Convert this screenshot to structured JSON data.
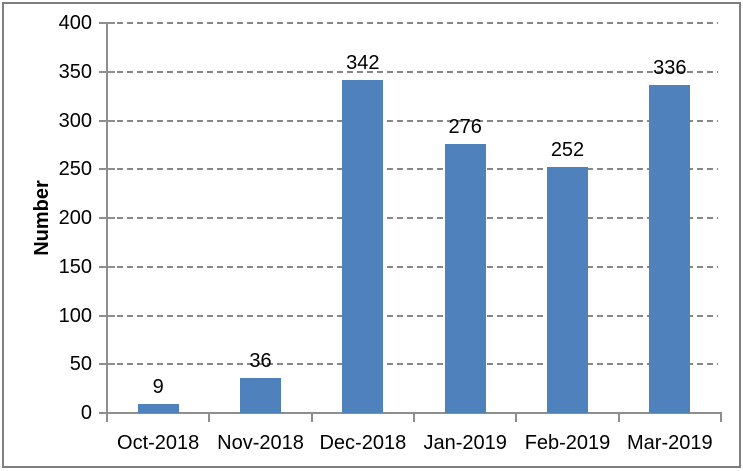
{
  "chart_data": {
    "type": "bar",
    "categories": [
      "Oct-2018",
      "Nov-2018",
      "Dec-2018",
      "Jan-2019",
      "Feb-2019",
      "Mar-2019"
    ],
    "values": [
      9,
      36,
      342,
      276,
      252,
      336
    ],
    "data_labels": [
      "9",
      "36",
      "342",
      "276",
      "252",
      "336"
    ],
    "title": "",
    "xlabel": "",
    "ylabel": "Number",
    "ylim": [
      0,
      400
    ],
    "yticks": [
      0,
      50,
      100,
      150,
      200,
      250,
      300,
      350,
      400
    ],
    "grid": "horizontal-dashed",
    "legend": "none",
    "colors": {
      "bar_fill": "#4F81BD",
      "gridline": "#878787",
      "axis": "#8E8E8E",
      "text": "#000000",
      "chart_border": "#7F7F7F",
      "background": "#FFFFFF"
    }
  }
}
